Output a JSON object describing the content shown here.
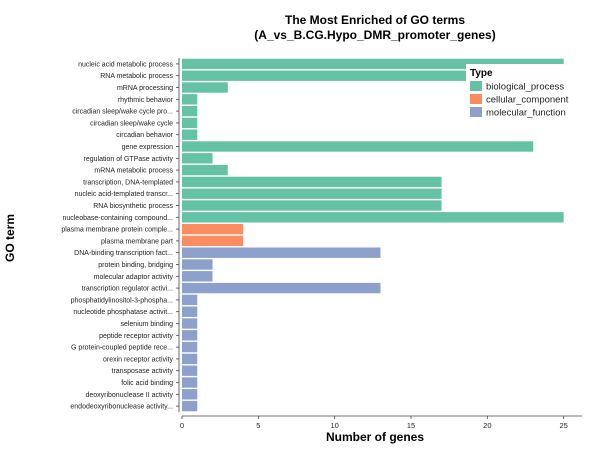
{
  "chart_data": {
    "type": "bar",
    "orientation": "horizontal",
    "title": "The Most Enriched of GO terms",
    "subtitle": "(A_vs_B.CG.Hypo_DMR_promoter_genes)",
    "xlabel": "Number of genes",
    "ylabel": "GO term",
    "xlim": [
      0,
      26.2
    ],
    "xticks": [
      0,
      5,
      10,
      15,
      20,
      25
    ],
    "grid": false,
    "legend": {
      "title": "Type",
      "position": "top-right",
      "entries": [
        {
          "name": "biological_process",
          "color": "#66c2a5"
        },
        {
          "name": "cellular_component",
          "color": "#fc8d62"
        },
        {
          "name": "molecular_function",
          "color": "#8da0cb"
        }
      ]
    },
    "categories": [
      "nucleic acid metabolic process",
      "RNA metabolic process",
      "mRNA processing",
      "rhythmic behavior",
      "circadian sleep/wake cycle pro...",
      "circadian sleep/wake cycle",
      "circadian behavior",
      "gene expression",
      "regulation of GTPase activity",
      "mRNA metabolic process",
      "transcription, DNA-templated",
      "nucleic acid-templated transcr...",
      "RNA biosynthetic process",
      "nucleobase-containing compound...",
      "plasma membrane protein comple...",
      "plasma membrane part",
      "DNA-binding transcription fact...",
      "protein binding, bridging",
      "molecular adaptor activity",
      "transcription regulator activi...",
      "phosphatidylinositol-3-phospha...",
      "nucleotide phosphatase activit...",
      "selenium binding",
      "peptide receptor activity",
      "G protein-coupled peptide rece...",
      "orexin receptor activity",
      "transposase activity",
      "folic acid binding",
      "deoxyribonuclease II activity",
      "endodeoxyribonuclease activity..."
    ],
    "values": [
      25,
      25,
      3,
      1,
      1,
      1,
      1,
      23,
      2,
      3,
      17,
      17,
      17,
      25,
      4,
      4,
      13,
      2,
      2,
      13,
      1,
      1,
      1,
      1,
      1,
      1,
      1,
      1,
      1,
      1
    ],
    "types": [
      "biological_process",
      "biological_process",
      "biological_process",
      "biological_process",
      "biological_process",
      "biological_process",
      "biological_process",
      "biological_process",
      "biological_process",
      "biological_process",
      "biological_process",
      "biological_process",
      "biological_process",
      "biological_process",
      "cellular_component",
      "cellular_component",
      "molecular_function",
      "molecular_function",
      "molecular_function",
      "molecular_function",
      "molecular_function",
      "molecular_function",
      "molecular_function",
      "molecular_function",
      "molecular_function",
      "molecular_function",
      "molecular_function",
      "molecular_function",
      "molecular_function",
      "molecular_function"
    ]
  }
}
